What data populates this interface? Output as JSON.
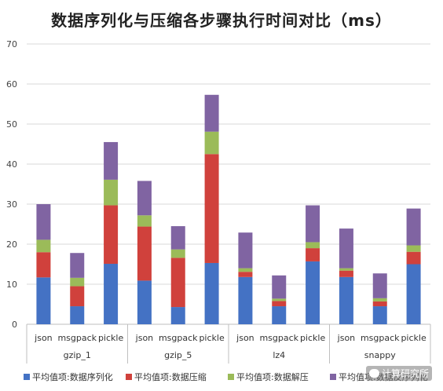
{
  "chart_data": {
    "type": "bar",
    "stacked": true,
    "title": "数据序列化与压缩各步骤执行时间对比（ms）",
    "ylim": [
      0,
      70
    ],
    "yticks": [
      0,
      10,
      20,
      30,
      40,
      50,
      60,
      70
    ],
    "grid": true,
    "legend_position": "bottom",
    "groups": [
      "gzip_1",
      "gzip_5",
      "lz4",
      "snappy"
    ],
    "categories": [
      "json",
      "msgpack",
      "pickle",
      "json",
      "msgpack",
      "pickle",
      "json",
      "msgpack",
      "pickle",
      "json",
      "msgpack",
      "pickle"
    ],
    "series": [
      {
        "name": "平均值项:数据序列化",
        "color": "#4472C4",
        "values": [
          11.7,
          4.5,
          15.1,
          10.9,
          4.3,
          15.3,
          11.8,
          4.5,
          15.7,
          11.8,
          4.5,
          15.0
        ]
      },
      {
        "name": "平均值项:数据压缩",
        "color": "#D0413C",
        "values": [
          6.3,
          5.0,
          14.6,
          13.5,
          12.3,
          27.2,
          1.3,
          1.3,
          3.3,
          1.6,
          1.2,
          3.1
        ]
      },
      {
        "name": "平均值项:数据解压",
        "color": "#9BBB59",
        "values": [
          3.1,
          2.1,
          6.4,
          2.8,
          2.1,
          5.6,
          0.9,
          0.6,
          1.5,
          0.6,
          0.8,
          1.6
        ]
      },
      {
        "name": "平均值项:数据反序列化",
        "color": "#8064A2",
        "values": [
          8.9,
          6.2,
          9.4,
          8.6,
          5.8,
          9.2,
          8.9,
          5.8,
          9.2,
          9.9,
          6.2,
          9.2
        ]
      }
    ]
  },
  "watermark": {
    "text": "计算研究所"
  }
}
